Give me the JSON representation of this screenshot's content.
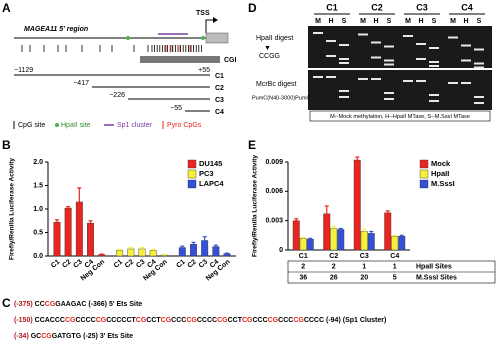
{
  "figure": {
    "panel_labels": [
      "A",
      "B",
      "C",
      "D",
      "E"
    ],
    "panel_a": {
      "region": "MAGEA11 5' region",
      "tss": "TSS",
      "cgi": "CGI",
      "constructs": [
        {
          "start": "−1129",
          "end": "+55",
          "name": "C1"
        },
        {
          "start": "−417",
          "name": "C2"
        },
        {
          "start": "−226",
          "name": "C3"
        },
        {
          "start": "−55",
          "name": "C4"
        }
      ],
      "legend": [
        "CpG site",
        "HpaII site",
        "Sp1 cluster",
        "Pyro CpGs"
      ]
    },
    "panel_c": {
      "lines": [
        {
          "start": "(-375)",
          "sequence": "CCCGGAAGAC",
          "end": "(-366)",
          "note": "5' Ets Site"
        },
        {
          "start": "(-150)",
          "sequence": "CCACCCCGCCCCCGCCCCCTCGCCTCGCCCCGCCCCCGCCTCGCCCCGCCCCGCCCC",
          "end": "(-94)",
          "note": "(Sp1 Cluster)"
        },
        {
          "start": "(-34)",
          "sequence": "GCCGGATGTG",
          "end": "(-25)",
          "note": "3' Ets Site"
        }
      ]
    },
    "panel_d": {
      "groups": [
        "C1",
        "C2",
        "C3",
        "C4"
      ],
      "lanes": [
        "M",
        "H",
        "S"
      ],
      "hpaii": "HpaII digest",
      "ccgg": "CCGG",
      "mcrbc": "McrBc digest",
      "mcrbc_site": "PumC(N40-3000)PumC",
      "key": "M--Mock methylation, H--HpaII MTase, S--M.SssI MTase"
    }
  },
  "chart_data": [
    {
      "type": "bar",
      "grouping": "by_series",
      "y_label": "Firefly/Renilla Luciferase Activity",
      "categories": [
        "C1",
        "C2",
        "C3",
        "C4",
        "Neg Con"
      ],
      "series": [
        {
          "name": "DU145",
          "color": "#e8251f",
          "values": [
            0.72,
            1.02,
            1.15,
            0.7,
            0.03
          ],
          "errors": [
            0.05,
            0.03,
            0.3,
            0.05,
            0.01
          ]
        },
        {
          "name": "PC3",
          "color": "#f5f03a",
          "values": [
            0.12,
            0.15,
            0.15,
            0.12,
            0.02
          ],
          "errors": [
            0.02,
            0.03,
            0.03,
            0.02,
            0.01
          ]
        },
        {
          "name": "LAPC4",
          "color": "#3451d6",
          "values": [
            0.18,
            0.25,
            0.33,
            0.2,
            0.05
          ],
          "errors": [
            0.03,
            0.04,
            0.08,
            0.03,
            0.01
          ]
        }
      ],
      "ylim": [
        0,
        2
      ],
      "yticks": [
        {
          "value": 0,
          "label": "0.0"
        },
        0.5,
        {
          "value": 1,
          "label": "1.0"
        },
        1.5,
        {
          "value": 2,
          "label": "2.0"
        }
      ],
      "legend": "top-right"
    },
    {
      "type": "bar",
      "grouping": "by_category",
      "y_label": "Firefly/Renilla Luciferase Activity",
      "categories": [
        "C1",
        "C2",
        "C3",
        "C4"
      ],
      "series": [
        {
          "name": "Mock",
          "color": "#e8251f",
          "values": [
            0.003,
            0.0037,
            0.0092,
            0.0038
          ],
          "errors": [
            0.0002,
            0.0008,
            0.0003,
            0.0002
          ]
        },
        {
          "name": "HpaII",
          "color": "#f5f03a",
          "values": [
            0.0012,
            0.0022,
            0.0019,
            0.0014
          ],
          "errors": [
            0.0001,
            0.0002,
            0.0002,
            0.0001
          ]
        },
        {
          "name": "M.SssI",
          "color": "#3451d6",
          "values": [
            0.0011,
            0.0021,
            0.0017,
            0.0014
          ],
          "errors": [
            0.0001,
            0.0001,
            0.0002,
            0.0001
          ]
        }
      ],
      "ylim": [
        0,
        0.009
      ],
      "yticks": [
        0,
        0.003,
        0.006,
        0.009
      ],
      "legend": "top-right",
      "table": {
        "rows": [
          {
            "label": "HpaII Sites",
            "values": [
              2,
              2,
              1,
              1
            ]
          },
          {
            "label": "M.SssI Sites",
            "values": [
              36,
              26,
              20,
              5
            ]
          }
        ]
      }
    }
  ]
}
